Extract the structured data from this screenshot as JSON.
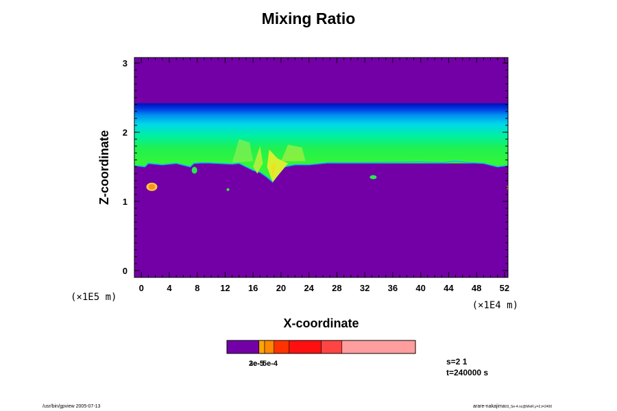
{
  "chart_data": {
    "type": "heatmap",
    "title": "Mixing Ratio",
    "xlabel": "X-coordinate",
    "ylabel": "Z-coordinate",
    "x_ticks": [
      "0",
      "4",
      "8",
      "12",
      "16",
      "20",
      "24",
      "28",
      "32",
      "36",
      "40",
      "44",
      "48",
      "52"
    ],
    "y_ticks": [
      "0",
      "1",
      "2",
      "3"
    ],
    "x_scale_note": "(×1E4 m)",
    "y_scale_note": "(×1E5 m)",
    "xlim": [
      -1,
      52.5
    ],
    "ylim": [
      -0.1,
      3.08
    ],
    "layers": [
      {
        "name": "lower region (low values)",
        "z_range": [
          -0.1,
          1.55
        ],
        "color": "#7300a6"
      },
      {
        "name": "green transition band",
        "z_range": [
          1.55,
          2.05
        ],
        "color": "#16f53a"
      },
      {
        "name": "cyan band",
        "z_range": [
          2.05,
          2.3
        ],
        "color": "#00e0e0"
      },
      {
        "name": "blue band",
        "z_range": [
          2.3,
          2.42
        ],
        "color": "#0018c8"
      },
      {
        "name": "upper region (low values)",
        "z_range": [
          2.42,
          3.08
        ],
        "color": "#7300a6"
      }
    ],
    "colorbar": {
      "colors": [
        "#7300a6",
        "#ffa500",
        "#ff8800",
        "#ff3300",
        "#ff1010",
        "#ff4444",
        "#ff9e9e"
      ],
      "bounds": [
        0,
        0.17,
        0.2,
        0.25,
        0.33,
        0.5,
        0.61,
        1.0
      ],
      "label_overlap": "2e-5",
      "label_overlap_2": "3e-5",
      "label_overlap_3": "5e-4",
      "label_composite": "3e-5e-4"
    },
    "run_info": {
      "s": "s=2 1",
      "t": "t=240000 s"
    }
  },
  "footer": {
    "left": "/usr/bin/gpview 2005-07-13",
    "right": "arare-nakajima",
    "right_small": "03_Se-4.nc@MixR,y=2,t=2400"
  }
}
